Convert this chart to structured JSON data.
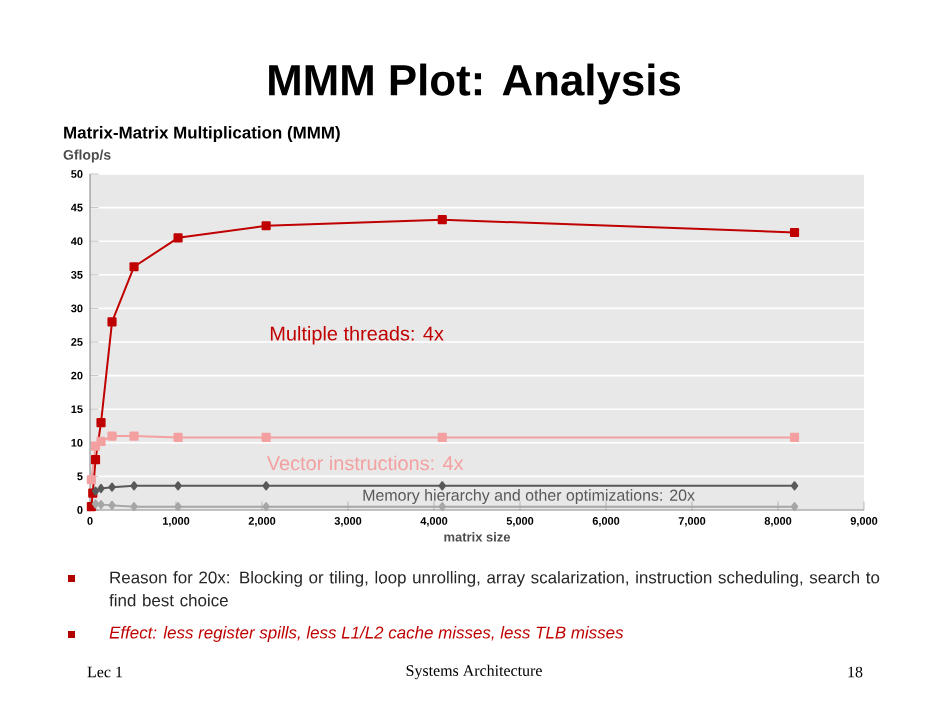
{
  "chart_data": {
    "type": "line",
    "title": "MMM Plot: Analysis",
    "subtitle": "Matrix-Matrix Multiplication (MMM)",
    "ylabel": "Gflop/s",
    "xlabel": "matrix size",
    "xlim": [
      0,
      9000
    ],
    "xticks": [
      {
        "value": 0,
        "label": "0"
      },
      {
        "value": 1000,
        "label": "1,000"
      },
      {
        "value": 2000,
        "label": "2,000"
      },
      {
        "value": 3000,
        "label": "3,000"
      },
      {
        "value": 4000,
        "label": "4,000"
      },
      {
        "value": 5000,
        "label": "5,000"
      },
      {
        "value": 6000,
        "label": "6,000"
      },
      {
        "value": 7000,
        "label": "7,000"
      },
      {
        "value": 8000,
        "label": "8,000"
      },
      {
        "value": 9000,
        "label": "9,000"
      }
    ],
    "ylim": [
      0,
      50
    ],
    "yticks": [
      0,
      5,
      10,
      15,
      20,
      25,
      30,
      35,
      40,
      45,
      50
    ],
    "grid": "y",
    "series": [
      {
        "name": "Multiple threads: 4x",
        "color": "#c00000",
        "marker": "square",
        "x": [
          16,
          32,
          64,
          128,
          256,
          512,
          1024,
          2048,
          4096,
          8192
        ],
        "values": [
          0.5,
          2.5,
          7.5,
          13,
          28,
          36.2,
          40.5,
          42.3,
          43.2,
          41.3
        ]
      },
      {
        "name": "Vector instructions: 4x",
        "color": "#f4a0a0",
        "marker": "square",
        "x": [
          16,
          64,
          128,
          256,
          512,
          1024,
          2048,
          4096,
          8192
        ],
        "values": [
          4.5,
          9.5,
          10.2,
          11,
          11,
          10.8,
          10.8,
          10.8,
          10.8
        ]
      },
      {
        "name": "Memory hierarchy and other optimizations: 20x",
        "color": "#595959",
        "marker": "diamond",
        "x": [
          64,
          128,
          256,
          512,
          1024,
          2048,
          4096,
          8192
        ],
        "values": [
          2.8,
          3.2,
          3.4,
          3.6,
          3.6,
          3.6,
          3.6,
          3.6
        ]
      },
      {
        "color": "#a6a6a6",
        "marker": "diamond",
        "x": [
          64,
          128,
          256,
          512,
          1024,
          2048,
          4096,
          8192
        ],
        "values": [
          0.9,
          0.8,
          0.7,
          0.5,
          0.5,
          0.5,
          0.5,
          0.5
        ]
      }
    ],
    "annotations": [
      "Reason for 20x: Blocking or tiling, loop unrolling, array scalarization, instruction scheduling, search to find best choice",
      "*Effect: less register spills, less L1/L2 cache misses, less TLB misses*",
      "Lec 1",
      "Systems Architecture",
      "18"
    ]
  }
}
